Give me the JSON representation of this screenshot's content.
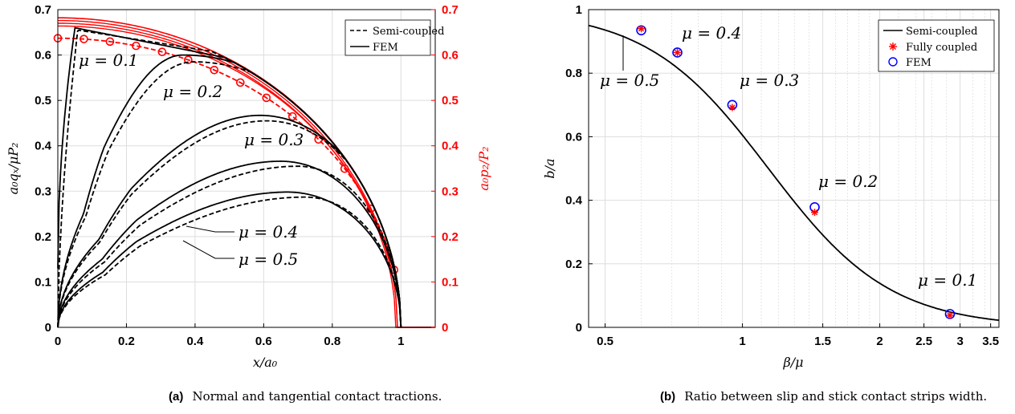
{
  "figure_a": {
    "caption_tag": "(a)",
    "caption_text": "Normal and tangential contact tractions.",
    "xlabel": "x/a₀",
    "ylabel_left": "a₀qₓ/μP₂",
    "ylabel_right": "a₀p₂/P₂",
    "legend": {
      "dashed": "Semi-coupled",
      "solid": "FEM"
    },
    "annotations": [
      "μ = 0.1",
      "μ = 0.2",
      "μ = 0.3",
      "μ = 0.4",
      "μ = 0.5"
    ],
    "xticks": [
      "0",
      "0.2",
      "0.4",
      "0.6",
      "0.8",
      "1"
    ],
    "yticks": [
      "0",
      "0.1",
      "0.2",
      "0.3",
      "0.4",
      "0.5",
      "0.6",
      "0.7"
    ]
  },
  "figure_b": {
    "caption_tag": "(b)",
    "caption_text": "Ratio between slip and stick contact strips width.",
    "xlabel": "β/μ",
    "ylabel": "b/a",
    "legend": {
      "line": "Semi-coupled",
      "star": "Fully coupled",
      "circle": "FEM"
    },
    "annotations": [
      "μ = 0.4",
      "μ = 0.5",
      "μ = 0.3",
      "μ = 0.2",
      "μ = 0.1"
    ],
    "xticks": [
      "0.5",
      "1",
      "1.5",
      "2",
      "2.5",
      "3",
      "3.5"
    ],
    "yticks": [
      "0",
      "0.2",
      "0.4",
      "0.6",
      "0.8",
      "1"
    ]
  },
  "colors": {
    "black": "#000000",
    "red": "#ff0000",
    "blue": "#0000ff",
    "grid": "#dddddd"
  },
  "chart_data": [
    {
      "type": "line",
      "panel": "a",
      "xlim": [
        0,
        1.1
      ],
      "ylim": [
        0,
        0.7
      ],
      "y2lim": [
        0,
        0.7
      ],
      "grid": true,
      "legend_position": "top-right",
      "series": [
        {
          "name": "Semi-coupled",
          "mu": 0.1,
          "a": 0.058,
          "c": 0.0,
          "m": 1.0
        },
        {
          "name": "FEM",
          "mu": 0.1,
          "a": 0.05,
          "c": 0.0,
          "m": 1.0
        },
        {
          "name": "Semi-coupled",
          "mu": 0.2,
          "a": 0.395,
          "c": 0.585,
          "m": 0.34
        },
        {
          "name": "FEM",
          "mu": 0.2,
          "a": 0.365,
          "c": 0.6,
          "m": 0.35
        },
        {
          "name": "Semi-coupled",
          "mu": 0.3,
          "a": 0.61,
          "c": 0.455,
          "m": 0.38
        },
        {
          "name": "FEM",
          "mu": 0.3,
          "a": 0.59,
          "c": 0.467,
          "m": 0.36
        },
        {
          "name": "Semi-coupled",
          "mu": 0.4,
          "a": 0.7,
          "c": 0.355,
          "m": 0.4
        },
        {
          "name": "FEM",
          "mu": 0.4,
          "a": 0.65,
          "c": 0.366,
          "m": 0.38
        },
        {
          "name": "Semi-coupled",
          "mu": 0.5,
          "a": 0.72,
          "c": 0.287,
          "m": 0.42
        },
        {
          "name": "FEM",
          "mu": 0.5,
          "a": 0.67,
          "c": 0.298,
          "m": 0.4
        }
      ],
      "normal_pressure_markers_x": [
        0.0,
        0.076,
        0.152,
        0.228,
        0.304,
        0.38,
        0.456,
        0.532,
        0.608,
        0.684,
        0.76,
        0.836,
        0.912,
        0.98
      ],
      "normal_pressure_peak": 0.637,
      "fem_pressure_peak": 0.682
    },
    {
      "type": "line",
      "panel": "b",
      "xscale": "log",
      "xlim": [
        0.46,
        3.65
      ],
      "ylim": [
        0,
        1
      ],
      "grid": true,
      "legend_position": "top-right",
      "curve": {
        "name": "Semi-coupled",
        "x0": 1.14,
        "k": 3.25
      },
      "points": [
        {
          "mu": 0.5,
          "x": 0.6,
          "fem": 0.935,
          "fully_coupled": 0.94
        },
        {
          "mu": 0.4,
          "x": 0.72,
          "fem": 0.865,
          "fully_coupled": 0.865
        },
        {
          "mu": 0.3,
          "x": 0.95,
          "fem": 0.7,
          "fully_coupled": 0.692
        },
        {
          "mu": 0.2,
          "x": 1.44,
          "fem": 0.378,
          "fully_coupled": 0.362
        },
        {
          "mu": 0.1,
          "x": 2.85,
          "fem": 0.042,
          "fully_coupled": 0.038
        }
      ]
    }
  ]
}
